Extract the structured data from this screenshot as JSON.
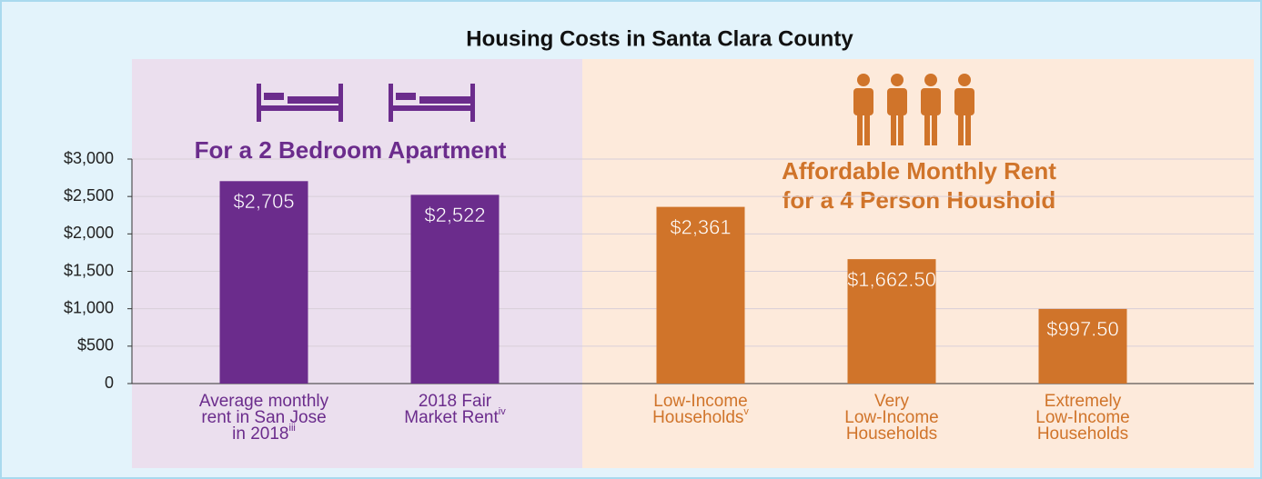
{
  "chart_data": {
    "type": "bar",
    "title": "Housing Costs in Santa Clara County",
    "groups": [
      {
        "title": [
          "For a 2 Bedroom Apartment"
        ],
        "color": "#6b2c8c",
        "background": "#ebdfee",
        "count": 2
      },
      {
        "title": [
          "Affordable Monthly Rent",
          "for a 4 Person Houshold"
        ],
        "color": "#d0742a",
        "background": "#fdeadb",
        "count": 3
      }
    ],
    "categories": [
      [
        "Average monthly",
        "rent in San Jose",
        "in 2018"
      ],
      [
        "2018 Fair",
        "Market Rent"
      ],
      [
        "Low-Income",
        "Households"
      ],
      [
        "Very",
        "Low-Income",
        "Households"
      ],
      [
        "Extremely",
        "Low-Income",
        "Households"
      ]
    ],
    "footnotes": [
      "iii",
      "iv",
      "v",
      null,
      null
    ],
    "values": [
      2705,
      2522,
      2361,
      1662.5,
      997.5
    ],
    "value_labels": [
      "$2,705",
      "$2,522",
      "$2,361",
      "$1,662.50",
      "$997.50"
    ],
    "colors": [
      "#6b2c8c",
      "#6b2c8c",
      "#d0742a",
      "#d0742a",
      "#d0742a"
    ],
    "ylim": [
      0,
      3000
    ],
    "yticks": [
      0,
      {
        "value": 500,
        "label": "$500"
      },
      {
        "value": 1000,
        "label": "$1,000"
      },
      {
        "value": 1500,
        "label": "$1,500"
      },
      {
        "value": 2000,
        "label": "$2,000"
      },
      {
        "value": 2500,
        "label": "$2,500"
      },
      {
        "value": 3000,
        "label": "$3,000"
      }
    ],
    "grid": true
  }
}
